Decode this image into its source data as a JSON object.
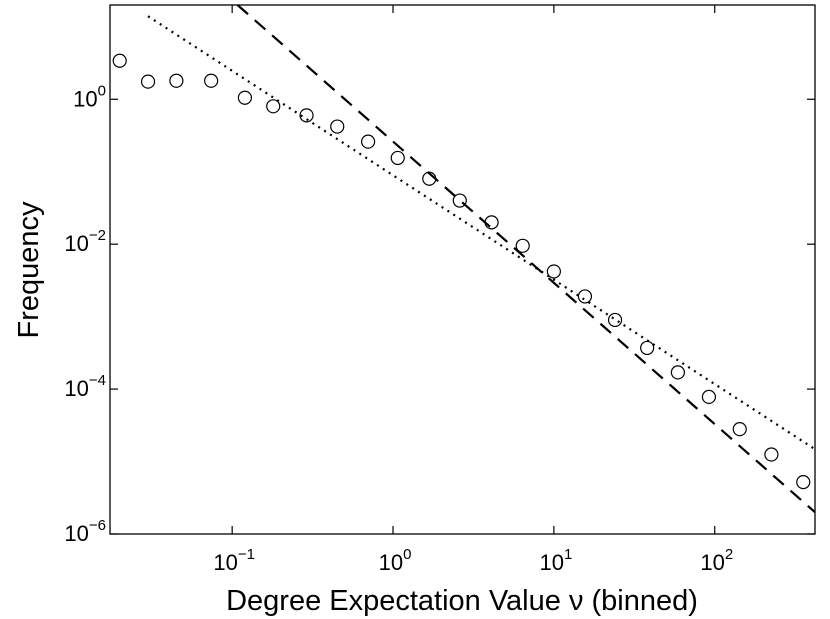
{
  "chart_data": {
    "type": "scatter",
    "title": "",
    "xlabel": "Degree Expectation Value ν (binned)",
    "ylabel": "Frequency",
    "xscale": "log",
    "yscale": "log",
    "xlim": [
      0.0174,
      420
    ],
    "ylim": [
      1e-06,
      20
    ],
    "grid": false,
    "legend": "none",
    "x_ticks": [
      {
        "value": 0.1,
        "base": "10",
        "exp": "−1"
      },
      {
        "value": 1,
        "base": "10",
        "exp": "0"
      },
      {
        "value": 10,
        "base": "10",
        "exp": "1"
      },
      {
        "value": 100,
        "base": "10",
        "exp": "2"
      }
    ],
    "y_ticks": [
      {
        "value": 1e-06,
        "base": "10",
        "exp": "−6"
      },
      {
        "value": 0.0001,
        "base": "10",
        "exp": "−4"
      },
      {
        "value": 0.01,
        "base": "10",
        "exp": "−2"
      },
      {
        "value": 1,
        "base": "10",
        "exp": "0"
      }
    ],
    "series": [
      {
        "style": "markers-open-circle",
        "x": [
          0.02,
          0.03,
          0.045,
          0.074,
          0.12,
          0.18,
          0.29,
          0.45,
          0.7,
          1.07,
          1.68,
          2.6,
          4.1,
          6.4,
          10,
          15.6,
          24,
          38,
          59,
          92,
          143,
          225,
          355
        ],
        "y": [
          3.4,
          1.75,
          1.8,
          1.8,
          1.05,
          0.8,
          0.6,
          0.42,
          0.26,
          0.155,
          0.08,
          0.04,
          0.02,
          0.0095,
          0.0042,
          0.0019,
          0.0009,
          0.00037,
          0.00017,
          7.8e-05,
          2.8e-05,
          1.25e-05,
          5.2e-06
        ]
      },
      {
        "style": "dotted-line",
        "x": [
          0.03,
          420
        ],
        "y": [
          14,
          1.48e-05
        ]
      },
      {
        "style": "dashed-line",
        "x": [
          0.108,
          420
        ],
        "y": [
          20,
          2e-06
        ]
      }
    ]
  }
}
